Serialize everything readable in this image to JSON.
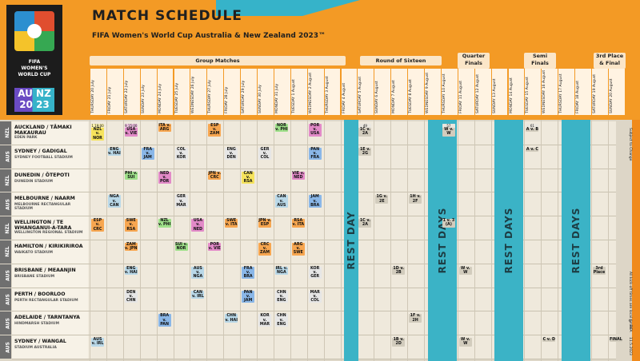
{
  "title": "MATCH SCHEDULE",
  "subtitle": "FIFA Women's World Cup Australia & New Zealand 2023™",
  "logo": {
    "line1": "FIFA",
    "line2": "WOMEN'S",
    "line3": "WORLD CUP",
    "mark": "AU NZ 20 23",
    "tm": "TM"
  },
  "stages": [
    "Group Matches",
    "Round of Sixteen",
    "Quarter Finals",
    "Semi Finals",
    "3rd Place & Final"
  ],
  "dates": [
    "THURSDAY 20 July",
    "FRIDAY 21 July",
    "SATURDAY 22 July",
    "SUNDAY 23 July",
    "MONDAY 24 July",
    "TUESDAY 25 July",
    "WEDNESDAY 26 July",
    "THURSDAY 27 July",
    "FRIDAY 28 July",
    "SATURDAY 29 July",
    "SUNDAY 30 July",
    "MONDAY 31 July",
    "TUESDAY 1 August",
    "WEDNESDAY 2 August",
    "THURSDAY 3 August",
    "FRIDAY 4 August",
    "SATURDAY 5 August",
    "SUNDAY 6 August",
    "MONDAY 7 August",
    "TUESDAY 8 August",
    "WEDNESDAY 9 August",
    "THURSDAY 10 August",
    "FRIDAY 11 August",
    "SATURDAY 12 August",
    "SUNDAY 13 August",
    "MONDAY 14 August",
    "TUESDAY 15 August",
    "WEDNESDAY 16 August",
    "THURSDAY 17 August",
    "FRIDAY 18 August",
    "SATURDAY 19 August",
    "SUNDAY 20 August"
  ],
  "rest": {
    "day": "REST DAY",
    "days": "REST DAYS"
  },
  "venues": [
    {
      "country": "NZL",
      "city": "AUCKLAND / TĀMAKI MAKAURAU",
      "stadium": "EDEN PARK"
    },
    {
      "country": "AUS",
      "city": "SYDNEY / GADIGAL",
      "stadium": "SYDNEY FOOTBALL STADIUM"
    },
    {
      "country": "NZL",
      "city": "DUNEDIN / ŌTEPOTI",
      "stadium": "DUNEDIN STADIUM"
    },
    {
      "country": "AUS",
      "city": "MELBOURNE / NAARM",
      "stadium": "MELBOURNE RECTANGULAR STADIUM"
    },
    {
      "country": "NZL",
      "city": "WELLINGTON / TE WHANGANUI-A-TARA",
      "stadium": "WELLINGTON REGIONAL STADIUM"
    },
    {
      "country": "NZL",
      "city": "HAMILTON / KIRIKIRIROA",
      "stadium": "WAIKATO STADIUM"
    },
    {
      "country": "AUS",
      "city": "BRISBANE / MEAANJIN",
      "stadium": "BRISBANE STADIUM"
    },
    {
      "country": "AUS",
      "city": "PERTH / BOORLOO",
      "stadium": "PERTH RECTANGULAR STADIUM"
    },
    {
      "country": "AUS",
      "city": "ADELAIDE / TARNTANYA",
      "stadium": "HINDMARSH STADIUM"
    },
    {
      "country": "AUS",
      "city": "SYDNEY / WANGAL",
      "stadium": "STADIUM AUSTRALIA"
    }
  ],
  "matches": [
    {
      "venue": 0,
      "day": 0,
      "no": "1",
      "time": "19:00",
      "teams": "NZL v. NOR",
      "color": "#f6e35c"
    },
    {
      "venue": 0,
      "day": 2,
      "no": "9",
      "time": "15:00",
      "teams": "USA v. VIE",
      "color": "#e28ac8"
    },
    {
      "venue": 0,
      "day": 4,
      "no": "",
      "time": "",
      "teams": "ITA v. ARG",
      "color": "#f7a650"
    },
    {
      "venue": 0,
      "day": 7,
      "no": "",
      "time": "",
      "teams": "ESP v. ZAM",
      "color": "#f7a650"
    },
    {
      "venue": 0,
      "day": 11,
      "no": "",
      "time": "",
      "teams": "NOR v. PHI",
      "color": "#9fe08a"
    },
    {
      "venue": 0,
      "day": 13,
      "no": "",
      "time": "",
      "teams": "POR v. USA",
      "color": "#e28ac8"
    },
    {
      "venue": 0,
      "day": 16,
      "no": "49",
      "time": "",
      "teams": "1C v. 2A",
      "color": "#d2ccbd"
    },
    {
      "venue": 0,
      "day": 21,
      "no": "57",
      "time": "",
      "teams": "W v. W",
      "color": "#d2ccbd"
    },
    {
      "venue": 0,
      "day": 26,
      "no": "61",
      "time": "",
      "teams": "A v. B",
      "color": "#d2ccbd"
    },
    {
      "venue": 1,
      "day": 1,
      "no": "",
      "time": "",
      "teams": "ENG v. HAI",
      "color": "#b9d8e8"
    },
    {
      "venue": 1,
      "day": 3,
      "no": "",
      "time": "",
      "teams": "FRA v. JAM",
      "color": "#8ab7e8"
    },
    {
      "venue": 1,
      "day": 5,
      "no": "",
      "time": "",
      "teams": "COL v. KOR",
      "color": "#e6e6e6"
    },
    {
      "venue": 1,
      "day": 8,
      "no": "",
      "time": "",
      "teams": "ENG v. DEN",
      "color": "#e6e6e6"
    },
    {
      "venue": 1,
      "day": 10,
      "no": "",
      "time": "",
      "teams": "GER v. COL",
      "color": "#e6e6e6"
    },
    {
      "venue": 1,
      "day": 13,
      "no": "",
      "time": "",
      "teams": "PAN v. FRA",
      "color": "#8ab7e8"
    },
    {
      "venue": 1,
      "day": 16,
      "no": "",
      "time": "",
      "teams": "1E v. 2G",
      "color": "#d2ccbd"
    },
    {
      "venue": 1,
      "day": 26,
      "no": "",
      "time": "",
      "teams": "A v. C",
      "color": "#d2ccbd"
    },
    {
      "venue": 2,
      "day": 2,
      "no": "",
      "time": "",
      "teams": "PHI v. SUI",
      "color": "#9fe08a"
    },
    {
      "venue": 2,
      "day": 4,
      "no": "",
      "time": "",
      "teams": "NED v. POR",
      "color": "#e28ac8"
    },
    {
      "venue": 2,
      "day": 7,
      "no": "",
      "time": "",
      "teams": "JPN v. CRC",
      "color": "#f7a650"
    },
    {
      "venue": 2,
      "day": 9,
      "no": "",
      "time": "",
      "teams": "CAN v. RSA",
      "color": "#f6e35c"
    },
    {
      "venue": 2,
      "day": 12,
      "no": "",
      "time": "",
      "teams": "VIE v. NED",
      "color": "#e28ac8"
    },
    {
      "venue": 2,
      "day": 14,
      "no": "",
      "time": "",
      "teams": "",
      "color": ""
    },
    {
      "venue": 3,
      "day": 1,
      "no": "",
      "time": "",
      "teams": "NGA v. CAN",
      "color": "#b9d8e8"
    },
    {
      "venue": 3,
      "day": 5,
      "no": "",
      "time": "",
      "teams": "GER v. MAR",
      "color": "#e6e6e6"
    },
    {
      "venue": 3,
      "day": 11,
      "no": "",
      "time": "",
      "teams": "CAN v. AUS",
      "color": "#b9d8e8"
    },
    {
      "venue": 3,
      "day": 13,
      "no": "",
      "time": "",
      "teams": "JAM v. BRA",
      "color": "#8ab7e8"
    },
    {
      "venue": 3,
      "day": 17,
      "no": "",
      "time": "",
      "teams": "1G v. 2E",
      "color": "#d2ccbd"
    },
    {
      "venue": 3,
      "day": 19,
      "no": "",
      "time": "",
      "teams": "1H v. 2F",
      "color": "#d2ccbd"
    },
    {
      "venue": 4,
      "day": 0,
      "no": "",
      "time": "",
      "teams": "ESP v. CRC",
      "color": "#f7a650"
    },
    {
      "venue": 4,
      "day": 2,
      "no": "",
      "time": "",
      "teams": "SWE v. RSA",
      "color": "#f7a650"
    },
    {
      "venue": 4,
      "day": 4,
      "no": "",
      "time": "",
      "teams": "NZL v. PHI",
      "color": "#9fe08a"
    },
    {
      "venue": 4,
      "day": 6,
      "no": "",
      "time": "",
      "teams": "USA v. NED",
      "color": "#e28ac8"
    },
    {
      "venue": 4,
      "day": 8,
      "no": "",
      "time": "",
      "teams": "SWE v. ITA",
      "color": "#f7a650"
    },
    {
      "venue": 4,
      "day": 10,
      "no": "",
      "time": "",
      "teams": "JPN v. ESP",
      "color": "#f7a650"
    },
    {
      "venue": 4,
      "day": 12,
      "no": "",
      "time": "",
      "teams": "RSA v. ITA",
      "color": "#f7a650"
    },
    {
      "venue": 4,
      "day": 16,
      "no": "",
      "time": "",
      "teams": "1C v. 2A",
      "color": "#d2ccbd"
    },
    {
      "venue": 4,
      "day": 21,
      "no": "",
      "time": "",
      "teams": "1 v. 3 (A)",
      "color": "#d2ccbd"
    },
    {
      "venue": 5,
      "day": 2,
      "no": "",
      "time": "",
      "teams": "ZAM v. JPN",
      "color": "#f7a650"
    },
    {
      "venue": 5,
      "day": 5,
      "no": "",
      "time": "",
      "teams": "SUI v. NOR",
      "color": "#9fe08a"
    },
    {
      "venue": 5,
      "day": 7,
      "no": "",
      "time": "",
      "teams": "POR v. VIE",
      "color": "#e28ac8"
    },
    {
      "venue": 5,
      "day": 10,
      "no": "",
      "time": "",
      "teams": "CRC v. ZAM",
      "color": "#f7a650"
    },
    {
      "venue": 5,
      "day": 12,
      "no": "",
      "time": "",
      "teams": "ARG v. SWE",
      "color": "#f7a650"
    },
    {
      "venue": 6,
      "day": 2,
      "no": "",
      "time": "",
      "teams": "ENG v. HAI",
      "color": "#b9d8e8"
    },
    {
      "venue": 6,
      "day": 6,
      "no": "",
      "time": "",
      "teams": "AUS v. NGA",
      "color": "#b9d8e8"
    },
    {
      "venue": 6,
      "day": 9,
      "no": "",
      "time": "",
      "teams": "FRA v. BRA",
      "color": "#8ab7e8"
    },
    {
      "venue": 6,
      "day": 11,
      "no": "",
      "time": "",
      "teams": "IRL v. NGA",
      "color": "#b9d8e8"
    },
    {
      "venue": 6,
      "day": 13,
      "no": "",
      "time": "",
      "teams": "KOR v. GER",
      "color": "#e6e6e6"
    },
    {
      "venue": 6,
      "day": 18,
      "no": "",
      "time": "",
      "teams": "1D v. 2B",
      "color": "#d2ccbd"
    },
    {
      "venue": 6,
      "day": 22,
      "no": "",
      "time": "",
      "teams": "W v. W",
      "color": "#d2ccbd"
    },
    {
      "venue": 6,
      "day": 30,
      "no": "",
      "time": "",
      "teams": "3rd Place",
      "color": "#d2ccbd"
    },
    {
      "venue": 7,
      "day": 2,
      "no": "",
      "time": "",
      "teams": "DEN v. CHN",
      "color": "#e6e6e6"
    },
    {
      "venue": 7,
      "day": 6,
      "no": "",
      "time": "",
      "teams": "CAN v. IRL",
      "color": "#b9d8e8"
    },
    {
      "venue": 7,
      "day": 9,
      "no": "",
      "time": "",
      "teams": "PAN v. JAM",
      "color": "#8ab7e8"
    },
    {
      "venue": 7,
      "day": 11,
      "no": "",
      "time": "",
      "teams": "CHN v. ENG",
      "color": "#e6e6e6"
    },
    {
      "venue": 7,
      "day": 13,
      "no": "",
      "time": "",
      "teams": "MAR v. COL",
      "color": "#e6e6e6"
    },
    {
      "venue": 8,
      "day": 4,
      "no": "",
      "time": "",
      "teams": "BRA v. PAN",
      "color": "#8ab7e8"
    },
    {
      "venue": 8,
      "day": 8,
      "no": "",
      "time": "",
      "teams": "CHN v. HAI",
      "color": "#b9d8e8"
    },
    {
      "venue": 8,
      "day": 10,
      "no": "",
      "time": "",
      "teams": "KOR v. MAR",
      "color": "#e6e6e6"
    },
    {
      "venue": 8,
      "day": 11,
      "no": "",
      "time": "",
      "teams": "CHN v. ENG",
      "color": "#e6e6e6"
    },
    {
      "venue": 8,
      "day": 19,
      "no": "",
      "time": "",
      "teams": "1F v. 2H",
      "color": "#d2ccbd"
    },
    {
      "venue": 9,
      "day": 0,
      "no": "",
      "time": "",
      "teams": "AUS v. IRL",
      "color": "#b9d8e8"
    },
    {
      "venue": 9,
      "day": 18,
      "no": "",
      "time": "",
      "teams": "1B v. 2D",
      "color": "#d2ccbd"
    },
    {
      "venue": 9,
      "day": 22,
      "no": "",
      "time": "",
      "teams": "W v. W",
      "color": "#d2ccbd"
    },
    {
      "venue": 9,
      "day": 27,
      "no": "",
      "time": "",
      "teams": "C v. D",
      "color": "#d2ccbd"
    },
    {
      "venue": 9,
      "day": 31,
      "no": "",
      "time": "",
      "teams": "FINAL",
      "color": "#d2ccbd"
    }
  ],
  "notes": {
    "subject": "Subject to Change",
    "times": "All kick-off times are local times",
    "copyright": "© FIFA",
    "date": "11.5.2023"
  }
}
